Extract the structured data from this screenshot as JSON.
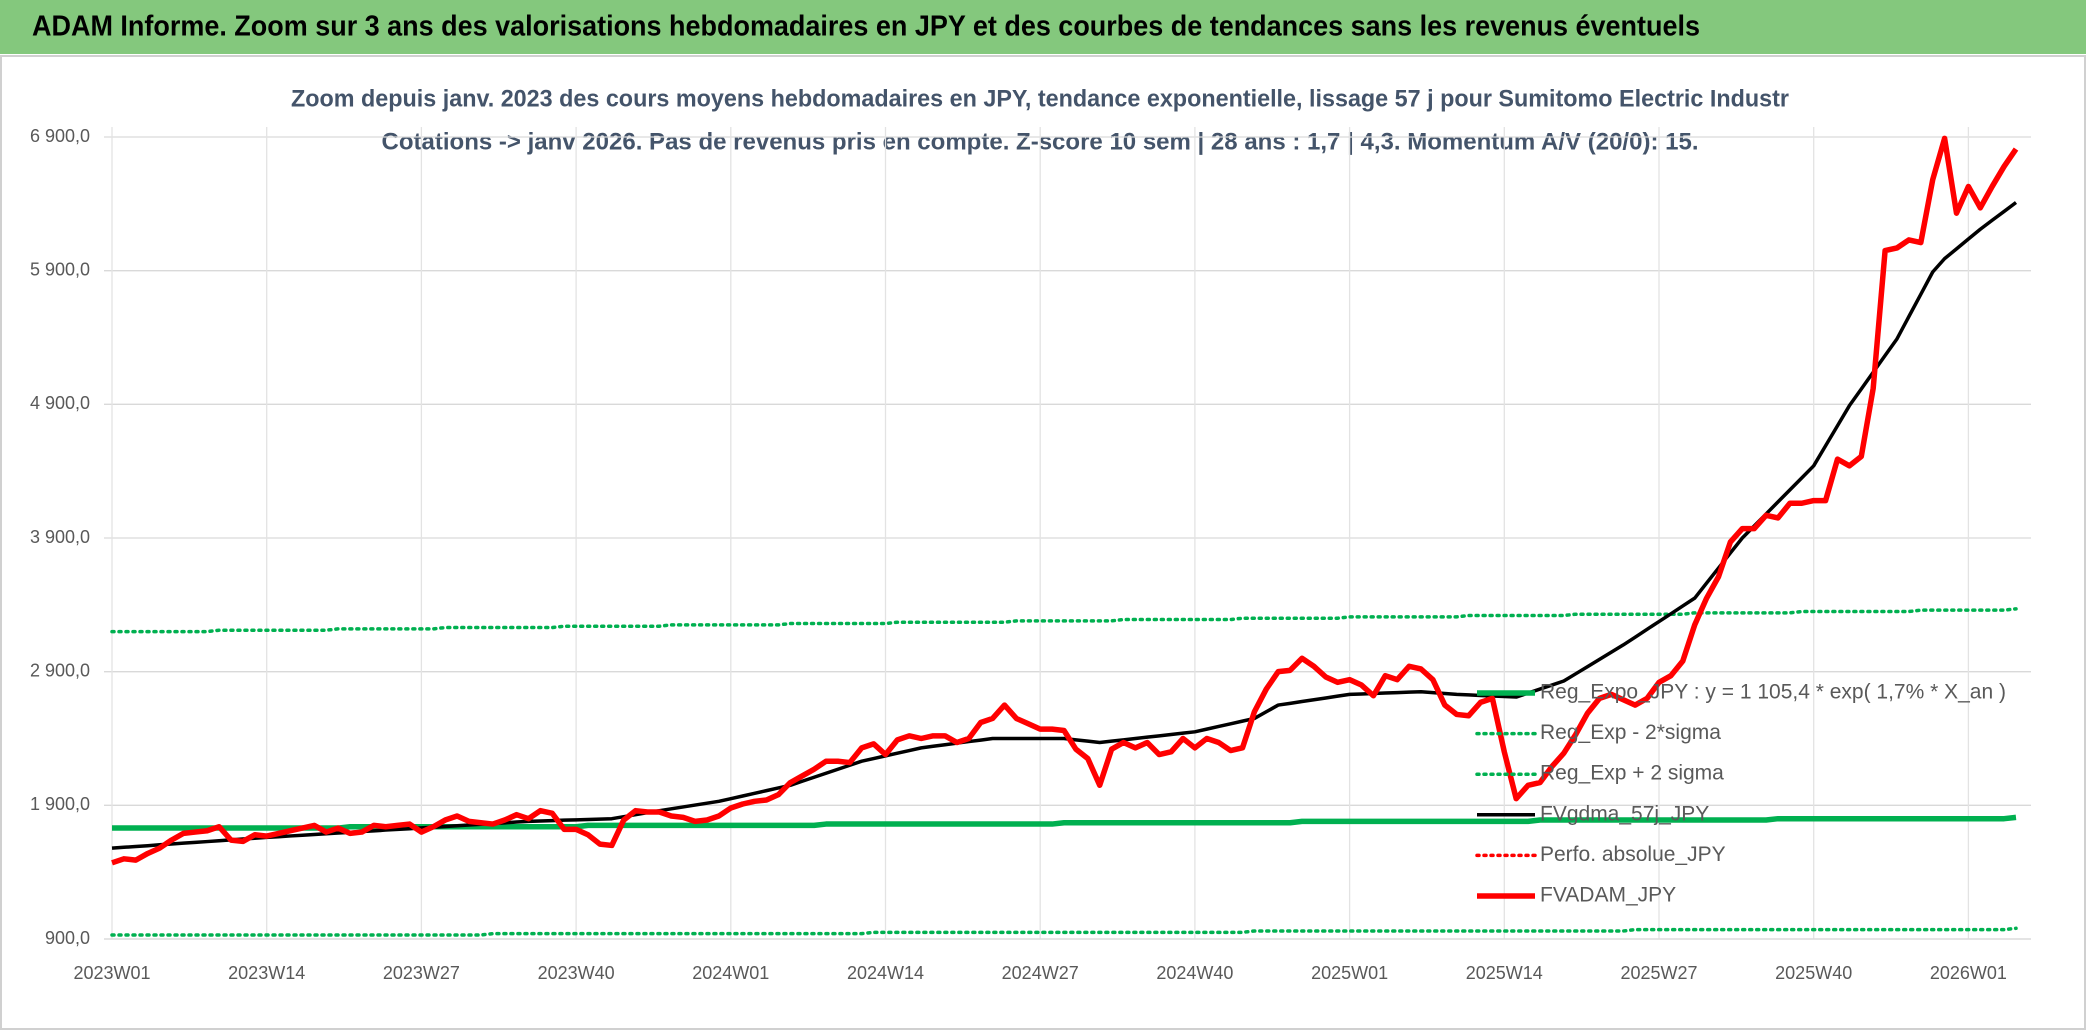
{
  "header": {
    "title": "ADAM Informe. Zoom sur 3 ans des valorisations hebdomadaires en JPY et des courbes de tendances sans les revenus éventuels"
  },
  "chart_data": {
    "type": "line",
    "title": "Zoom depuis janv. 2023 des cours moyens hebdomadaires en JPY, tendance exponentielle, lissage 57 j pour Sumitomo Electric Industr",
    "subtitle": "Cotations -> janv 2026. Pas de revenus pris en compte. Z-score 10 sem | 28 ans : 1,7 | 4,3. Momentum A/V (20/0): 15.",
    "ylim": [
      900,
      6900
    ],
    "yticks": [
      {
        "value": 900,
        "label": "900,0"
      },
      {
        "value": 1900,
        "label": "1 900,0"
      },
      {
        "value": 2900,
        "label": "2 900,0"
      },
      {
        "value": 3900,
        "label": "3 900,0"
      },
      {
        "value": 4900,
        "label": "4 900,0"
      },
      {
        "value": 5900,
        "label": "5 900,0"
      },
      {
        "value": 6900,
        "label": "6 900,0"
      }
    ],
    "grid": true,
    "legend_position": "lower-right",
    "categories": [
      "2023W01",
      null,
      null,
      null,
      null,
      null,
      null,
      null,
      null,
      null,
      null,
      null,
      null,
      "2023W14",
      null,
      null,
      null,
      null,
      null,
      null,
      null,
      null,
      null,
      null,
      null,
      null,
      "2023W27",
      null,
      null,
      null,
      null,
      null,
      null,
      null,
      null,
      null,
      null,
      null,
      null,
      "2023W40",
      null,
      null,
      null,
      null,
      null,
      null,
      null,
      null,
      null,
      null,
      null,
      null,
      "2024W01",
      null,
      null,
      null,
      null,
      null,
      null,
      null,
      null,
      null,
      null,
      null,
      null,
      "2024W14",
      null,
      null,
      null,
      null,
      null,
      null,
      null,
      null,
      null,
      null,
      null,
      null,
      "2024W27",
      null,
      null,
      null,
      null,
      null,
      null,
      null,
      null,
      null,
      null,
      null,
      null,
      "2024W40",
      null,
      null,
      null,
      null,
      null,
      null,
      null,
      null,
      null,
      null,
      null,
      null,
      "2025W01",
      null,
      null,
      null,
      null,
      null,
      null,
      null,
      null,
      null,
      null,
      null,
      null,
      "2025W14",
      null,
      null,
      null,
      null,
      null,
      null,
      null,
      null,
      null,
      null,
      null,
      null,
      "2025W27",
      null,
      null,
      null,
      null,
      null,
      null,
      null,
      null,
      null,
      null,
      null,
      null,
      "2025W40",
      null,
      null,
      null,
      null,
      null,
      null,
      null,
      null,
      null,
      null,
      null,
      null,
      "2026W01",
      null,
      null,
      null,
      null
    ],
    "series": [
      {
        "name": "Reg_Expo_JPY : y = 1 105,4 * exp( 1,7% *  X_an )",
        "color": "#00b050",
        "line_style": "solid",
        "thick": true,
        "values": [
          1730,
          1730,
          1730,
          1730,
          1730,
          1730,
          1730,
          1730,
          1730,
          1730,
          1730,
          1730,
          1730,
          1730,
          1730,
          1730,
          1730,
          1730,
          1730,
          1730,
          1740,
          1740,
          1740,
          1740,
          1740,
          1740,
          1740,
          1740,
          1740,
          1740,
          1740,
          1740,
          1740,
          1740,
          1740,
          1740,
          1740,
          1740,
          1740,
          1740,
          1750,
          1750,
          1750,
          1750,
          1750,
          1750,
          1750,
          1750,
          1750,
          1750,
          1750,
          1750,
          1750,
          1750,
          1750,
          1750,
          1750,
          1750,
          1750,
          1750,
          1760,
          1760,
          1760,
          1760,
          1760,
          1760,
          1760,
          1760,
          1760,
          1760,
          1760,
          1760,
          1760,
          1760,
          1760,
          1760,
          1760,
          1760,
          1760,
          1760,
          1770,
          1770,
          1770,
          1770,
          1770,
          1770,
          1770,
          1770,
          1770,
          1770,
          1770,
          1770,
          1770,
          1770,
          1770,
          1770,
          1770,
          1770,
          1770,
          1770,
          1780,
          1780,
          1780,
          1780,
          1780,
          1780,
          1780,
          1780,
          1780,
          1780,
          1780,
          1780,
          1780,
          1780,
          1780,
          1780,
          1780,
          1780,
          1780,
          1780,
          1790,
          1790,
          1790,
          1790,
          1790,
          1790,
          1790,
          1790,
          1790,
          1790,
          1790,
          1790,
          1790,
          1790,
          1790,
          1790,
          1790,
          1790,
          1790,
          1790,
          1800,
          1800,
          1800,
          1800,
          1800,
          1800,
          1800,
          1800,
          1800,
          1800,
          1800,
          1800,
          1800,
          1800,
          1800,
          1800,
          1800,
          1800,
          1800,
          1800,
          1810
        ]
      },
      {
        "name": "Reg_Exp - 2*sigma",
        "color": "#00b050",
        "line_style": "dotted",
        "thick": false,
        "values": [
          930,
          930,
          930,
          930,
          930,
          930,
          930,
          930,
          930,
          930,
          930,
          930,
          930,
          930,
          930,
          930,
          930,
          930,
          930,
          930,
          930,
          930,
          930,
          930,
          930,
          930,
          930,
          930,
          930,
          930,
          930,
          930,
          940,
          940,
          940,
          940,
          940,
          940,
          940,
          940,
          940,
          940,
          940,
          940,
          940,
          940,
          940,
          940,
          940,
          940,
          940,
          940,
          940,
          940,
          940,
          940,
          940,
          940,
          940,
          940,
          940,
          940,
          940,
          940,
          950,
          950,
          950,
          950,
          950,
          950,
          950,
          950,
          950,
          950,
          950,
          950,
          950,
          950,
          950,
          950,
          950,
          950,
          950,
          950,
          950,
          950,
          950,
          950,
          950,
          950,
          950,
          950,
          950,
          950,
          950,
          950,
          960,
          960,
          960,
          960,
          960,
          960,
          960,
          960,
          960,
          960,
          960,
          960,
          960,
          960,
          960,
          960,
          960,
          960,
          960,
          960,
          960,
          960,
          960,
          960,
          960,
          960,
          960,
          960,
          960,
          960,
          960,
          960,
          970,
          970,
          970,
          970,
          970,
          970,
          970,
          970,
          970,
          970,
          970,
          970,
          970,
          970,
          970,
          970,
          970,
          970,
          970,
          970,
          970,
          970,
          970,
          970,
          970,
          970,
          970,
          970,
          970,
          970,
          970,
          970,
          980
        ]
      },
      {
        "name": "Reg_Exp + 2 sigma",
        "color": "#00b050",
        "line_style": "dotted",
        "thick": false,
        "values": [
          3200,
          3200,
          3200,
          3200,
          3200,
          3200,
          3200,
          3200,
          3200,
          3210,
          3210,
          3210,
          3210,
          3210,
          3210,
          3210,
          3210,
          3210,
          3210,
          3220,
          3220,
          3220,
          3220,
          3220,
          3220,
          3220,
          3220,
          3220,
          3230,
          3230,
          3230,
          3230,
          3230,
          3230,
          3230,
          3230,
          3230,
          3230,
          3240,
          3240,
          3240,
          3240,
          3240,
          3240,
          3240,
          3240,
          3240,
          3250,
          3250,
          3250,
          3250,
          3250,
          3250,
          3250,
          3250,
          3250,
          3250,
          3260,
          3260,
          3260,
          3260,
          3260,
          3260,
          3260,
          3260,
          3260,
          3270,
          3270,
          3270,
          3270,
          3270,
          3270,
          3270,
          3270,
          3270,
          3270,
          3280,
          3280,
          3280,
          3280,
          3280,
          3280,
          3280,
          3280,
          3280,
          3290,
          3290,
          3290,
          3290,
          3290,
          3290,
          3290,
          3290,
          3290,
          3290,
          3300,
          3300,
          3300,
          3300,
          3300,
          3300,
          3300,
          3300,
          3300,
          3310,
          3310,
          3310,
          3310,
          3310,
          3310,
          3310,
          3310,
          3310,
          3310,
          3320,
          3320,
          3320,
          3320,
          3320,
          3320,
          3320,
          3320,
          3320,
          3330,
          3330,
          3330,
          3330,
          3330,
          3330,
          3330,
          3330,
          3330,
          3330,
          3340,
          3340,
          3340,
          3340,
          3340,
          3340,
          3340,
          3340,
          3340,
          3350,
          3350,
          3350,
          3350,
          3350,
          3350,
          3350,
          3350,
          3350,
          3350,
          3360,
          3360,
          3360,
          3360,
          3360,
          3360,
          3360,
          3360,
          3370
        ]
      },
      {
        "name": "FVgdma_57j_JPY",
        "color": "#000000",
        "line_style": "solid",
        "thick": false,
        "values": [
          1580,
          1586,
          1592,
          1598,
          1605,
          1611,
          1617,
          1623,
          1629,
          1635,
          1642,
          1648,
          1654,
          1660,
          1665,
          1671,
          1676,
          1682,
          1687,
          1693,
          1698,
          1704,
          1709,
          1715,
          1720,
          1725,
          1731,
          1736,
          1742,
          1747,
          1753,
          1758,
          1764,
          1769,
          1775,
          1780,
          1783,
          1786,
          1789,
          1791,
          1794,
          1797,
          1800,
          1815,
          1830,
          1845,
          1860,
          1874,
          1888,
          1902,
          1916,
          1930,
          1950,
          1970,
          1990,
          2010,
          2030,
          2050,
          2080,
          2110,
          2140,
          2170,
          2200,
          2230,
          2250,
          2270,
          2290,
          2310,
          2330,
          2342,
          2353,
          2365,
          2377,
          2388,
          2400,
          2400,
          2400,
          2400,
          2400,
          2400,
          2400,
          2390,
          2380,
          2370,
          2380,
          2390,
          2400,
          2410,
          2420,
          2430,
          2440,
          2450,
          2470,
          2490,
          2510,
          2530,
          2550,
          2600,
          2650,
          2663,
          2677,
          2690,
          2703,
          2717,
          2730,
          2733,
          2737,
          2740,
          2743,
          2747,
          2750,
          2743,
          2737,
          2730,
          2726,
          2722,
          2718,
          2714,
          2710,
          2740,
          2770,
          2800,
          2830,
          2884,
          2938,
          2992,
          3046,
          3100,
          3158,
          3217,
          3275,
          3333,
          3392,
          3450,
          3563,
          3675,
          3788,
          3900,
          3990,
          4080,
          4170,
          4260,
          4350,
          4440,
          4590,
          4740,
          4890,
          5015,
          5140,
          5265,
          5390,
          5557,
          5723,
          5890,
          5990,
          6063,
          6137,
          6210,
          6277,
          6343,
          6410
        ]
      },
      {
        "name": "Perfo. absolue_JPY",
        "color": "#ff0000",
        "line_style": "dotted",
        "thick": false,
        "values": [
          null,
          null,
          null,
          null,
          null,
          null,
          null,
          null,
          null,
          null,
          null,
          null,
          null,
          null,
          null,
          null,
          null,
          null,
          null,
          null,
          null,
          null,
          null,
          null,
          null,
          null,
          null,
          null,
          null,
          null,
          null,
          null,
          null,
          null,
          null,
          null,
          null,
          null,
          null,
          null,
          null,
          null,
          null,
          null,
          null,
          null,
          null,
          null,
          null,
          null,
          null,
          null,
          null,
          null,
          null,
          null,
          null,
          null,
          null,
          null,
          null,
          null,
          null,
          null,
          null,
          null,
          null,
          null,
          null,
          null,
          null,
          null,
          null,
          null,
          null,
          null,
          null,
          null,
          null,
          null,
          null,
          null,
          null,
          null,
          null,
          null,
          null,
          null,
          null,
          null,
          null,
          null,
          null,
          null,
          null,
          null,
          null,
          null,
          null,
          null,
          null,
          null,
          null,
          null,
          null,
          null,
          null,
          null,
          null,
          null,
          null,
          null,
          null,
          null,
          null,
          null,
          null,
          null,
          null,
          null,
          null,
          null,
          null,
          null,
          null,
          null,
          null,
          null,
          null,
          null,
          null,
          null,
          null,
          null,
          null,
          null,
          null,
          null,
          null,
          null,
          null,
          null,
          null,
          null,
          null,
          null,
          null,
          null,
          null,
          null,
          null,
          null,
          null,
          null,
          null,
          null,
          null,
          null,
          null,
          null,
          null
        ]
      },
      {
        "name": "FVADAM_JPY",
        "color": "#ff0000",
        "line_style": "solid",
        "thick": true,
        "values": [
          1470,
          1500,
          1490,
          1540,
          1580,
          1640,
          1690,
          1700,
          1710,
          1740,
          1640,
          1630,
          1680,
          1670,
          1690,
          1710,
          1730,
          1750,
          1700,
          1730,
          1690,
          1700,
          1750,
          1740,
          1750,
          1760,
          1700,
          1740,
          1790,
          1820,
          1780,
          1770,
          1760,
          1790,
          1830,
          1800,
          1860,
          1840,
          1720,
          1720,
          1680,
          1610,
          1600,
          1790,
          1860,
          1850,
          1850,
          1820,
          1810,
          1780,
          1790,
          1820,
          1880,
          1910,
          1930,
          1940,
          1980,
          2070,
          2120,
          2170,
          2230,
          2230,
          2220,
          2330,
          2360,
          2280,
          2390,
          2420,
          2400,
          2420,
          2420,
          2370,
          2400,
          2520,
          2550,
          2650,
          2550,
          2510,
          2470,
          2470,
          2460,
          2320,
          2250,
          2050,
          2320,
          2370,
          2330,
          2370,
          2280,
          2300,
          2400,
          2330,
          2400,
          2370,
          2310,
          2330,
          2600,
          2770,
          2900,
          2910,
          3000,
          2940,
          2860,
          2820,
          2840,
          2800,
          2720,
          2870,
          2840,
          2940,
          2920,
          2840,
          2650,
          2580,
          2570,
          2670,
          2700,
          2300,
          1950,
          2050,
          2070,
          2190,
          2290,
          2430,
          2590,
          2700,
          2730,
          2690,
          2650,
          2700,
          2820,
          2870,
          2980,
          3250,
          3450,
          3610,
          3870,
          3970,
          3970,
          4070,
          4050,
          4160,
          4160,
          4180,
          4180,
          4490,
          4440,
          4510,
          5020,
          6050,
          6070,
          6130,
          6110,
          6580,
          6890,
          6330,
          6530,
          6370,
          6530,
          6680,
          6810
        ]
      }
    ]
  }
}
